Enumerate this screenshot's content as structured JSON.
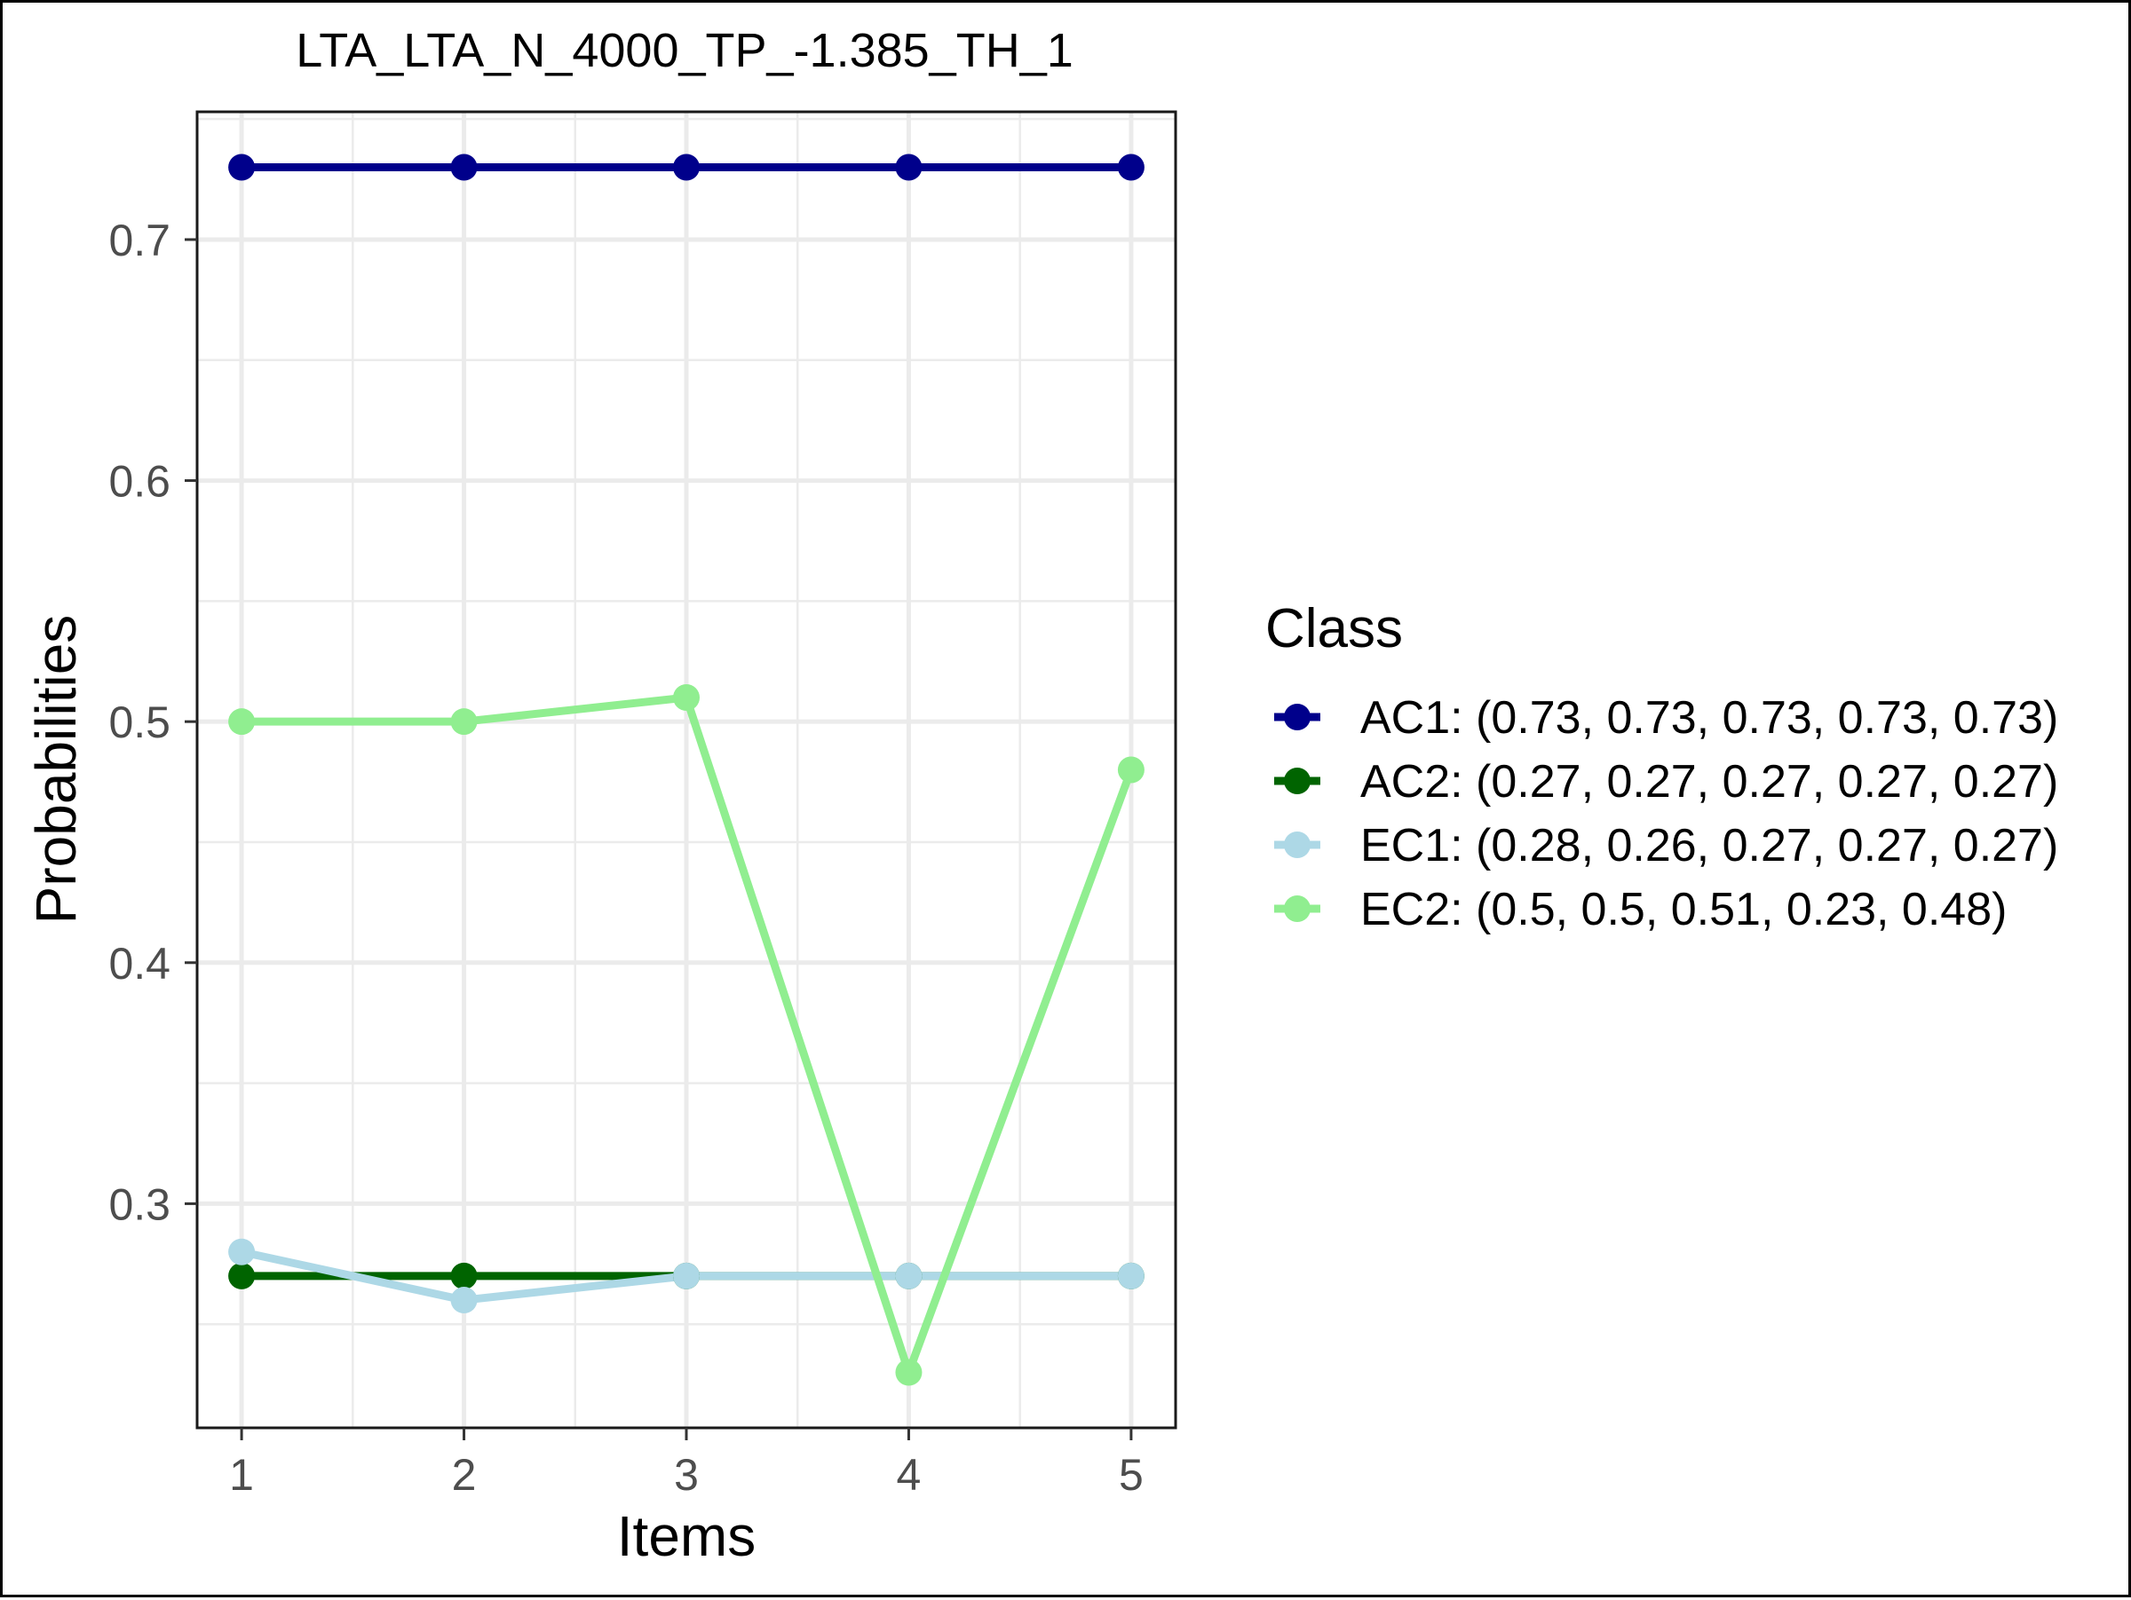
{
  "chart_data": {
    "type": "line",
    "title": "LTA_LTA_N_4000_TP_-1.385_TH_1",
    "xlabel": "Items",
    "ylabel": "Probabilities",
    "x": [
      1,
      2,
      3,
      4,
      5
    ],
    "x_tick_labels": [
      "1",
      "2",
      "3",
      "4",
      "5"
    ],
    "y_ticks": [
      0.3,
      0.4,
      0.5,
      0.6,
      0.7
    ],
    "y_tick_labels": [
      "0.3",
      "0.4",
      "0.5",
      "0.6",
      "0.7"
    ],
    "xlim": [
      0.8,
      5.2
    ],
    "ylim": [
      0.207,
      0.753
    ],
    "grid": true,
    "legend": {
      "title": "Class",
      "placement": "right"
    },
    "series": [
      {
        "name": "AC1",
        "label": "AC1: (0.73, 0.73, 0.73, 0.73, 0.73)",
        "color": "#00008b",
        "values": [
          0.73,
          0.73,
          0.73,
          0.73,
          0.73
        ]
      },
      {
        "name": "AC2",
        "label": "AC2: (0.27, 0.27, 0.27, 0.27, 0.27)",
        "color": "#006400",
        "values": [
          0.27,
          0.27,
          0.27,
          0.27,
          0.27
        ]
      },
      {
        "name": "EC1",
        "label": "EC1: (0.28, 0.26, 0.27, 0.27, 0.27)",
        "color": "#add8e6",
        "values": [
          0.28,
          0.26,
          0.27,
          0.27,
          0.27
        ]
      },
      {
        "name": "EC2",
        "label": "EC2: (0.5, 0.5, 0.51, 0.23, 0.48)",
        "color": "#90ee90",
        "values": [
          0.5,
          0.5,
          0.51,
          0.23,
          0.48
        ]
      }
    ]
  }
}
